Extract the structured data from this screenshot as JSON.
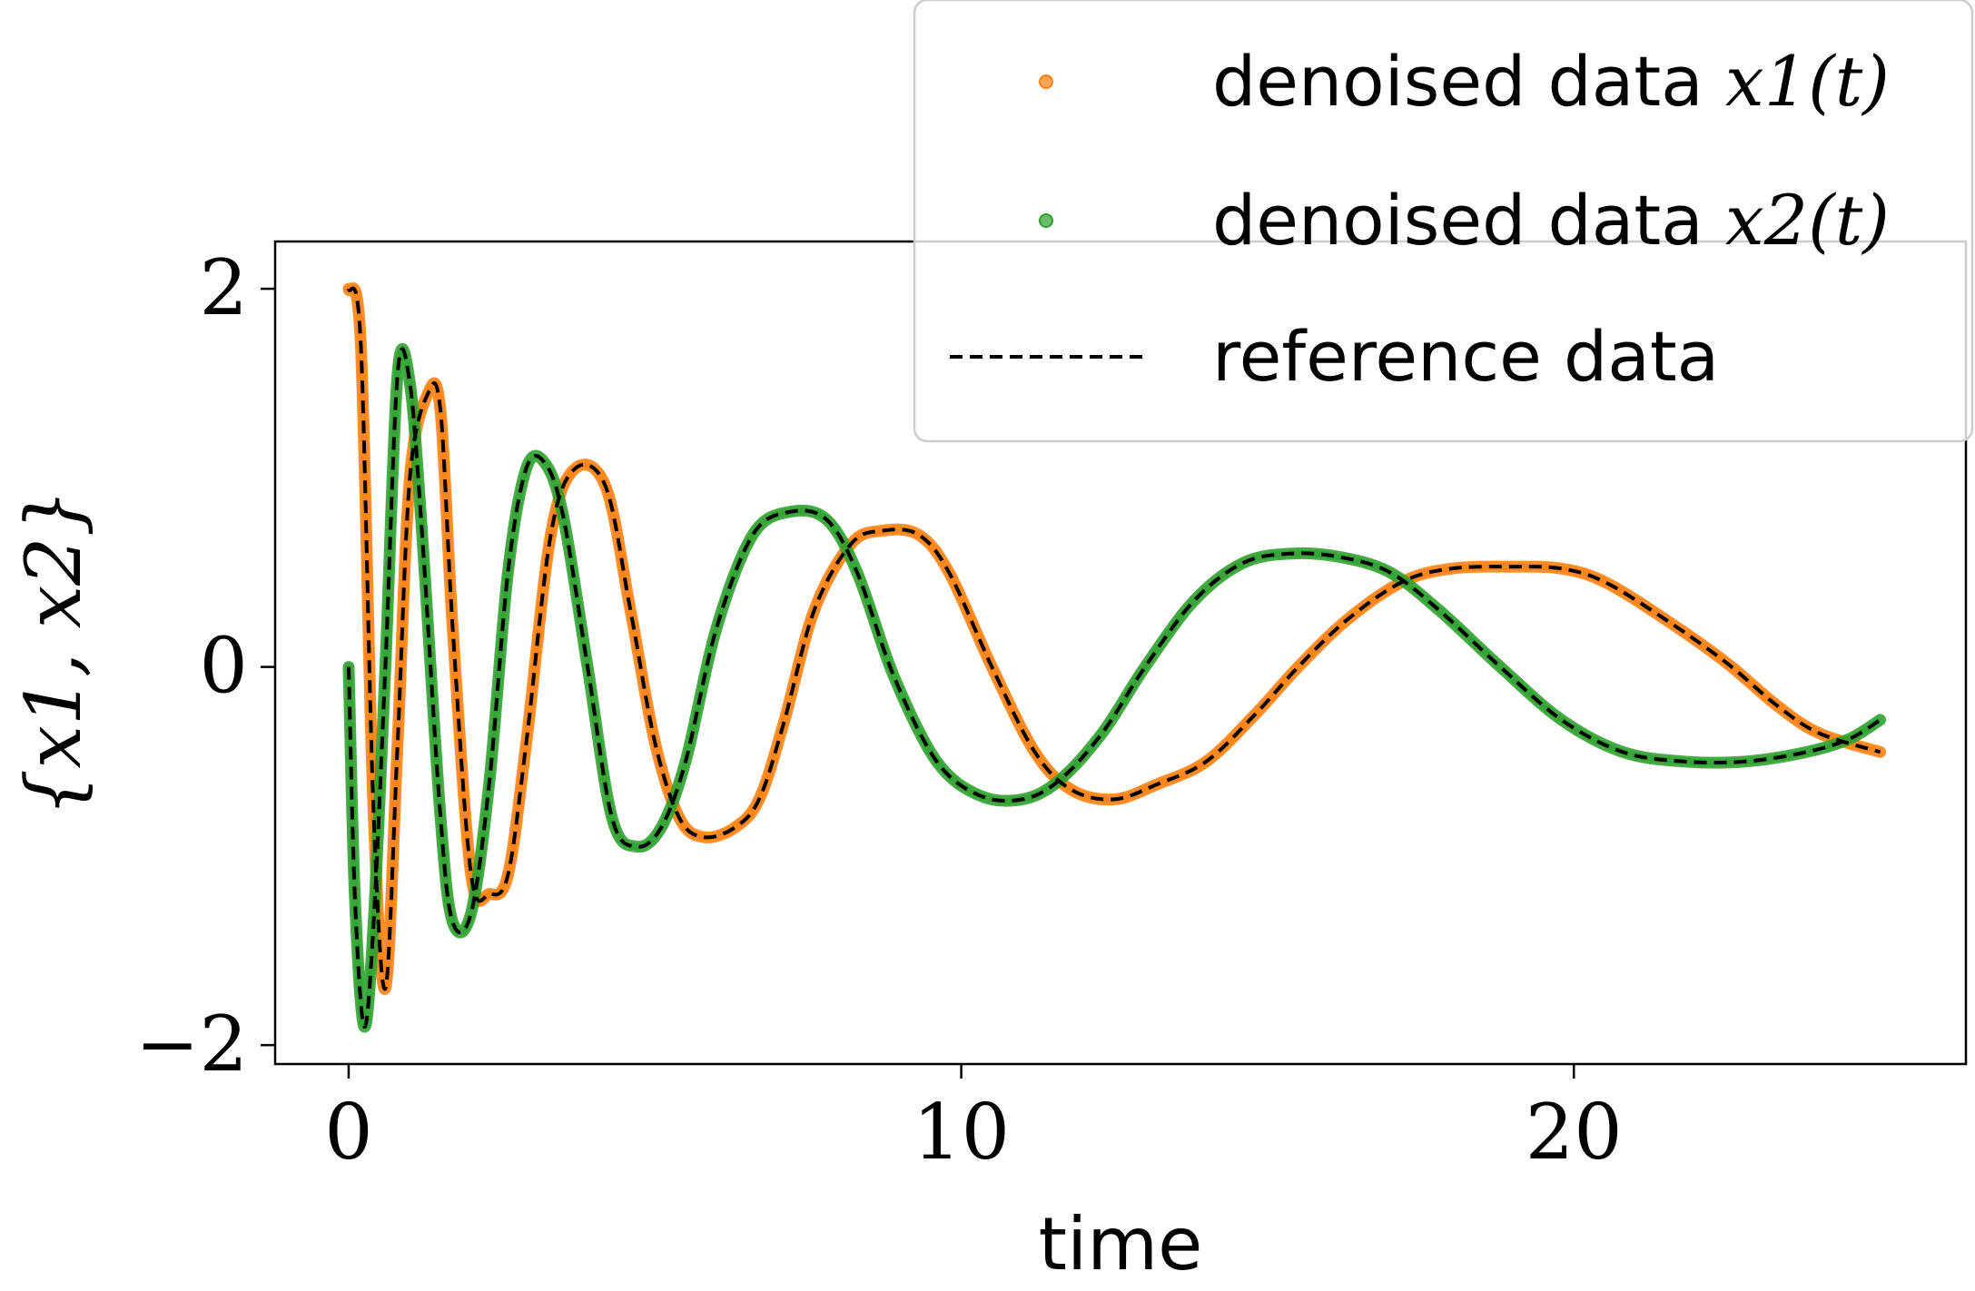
{
  "chart_data": {
    "type": "line",
    "xlabel": "time",
    "ylabel": "{x1, x2}",
    "xlim": [
      -1.2,
      26.4
    ],
    "ylim": [
      -2.1,
      2.25
    ],
    "xticks": [
      0,
      10,
      20
    ],
    "yticks": [
      -2,
      0,
      2
    ],
    "grid": false,
    "legend_position": "top-right",
    "colors": {
      "x1": "#ff7f0e",
      "x2": "#2ca02c",
      "reference": "#000000"
    },
    "legend": [
      {
        "text": "denoised data ",
        "math": "x1(t)",
        "style": "markers",
        "color": "#ff7f0e"
      },
      {
        "text": "denoised data ",
        "math": "x2(t)",
        "style": "markers",
        "color": "#2ca02c"
      },
      {
        "text": "reference data",
        "math": "",
        "style": "dashed",
        "color": "#000000"
      }
    ],
    "series": [
      {
        "name": "denoised data x1(t)",
        "points": [
          [
            0,
            2.0
          ],
          [
            0.2,
            1.7
          ],
          [
            0.4,
            -0.7
          ],
          [
            0.6,
            -1.7
          ],
          [
            0.8,
            -0.4
          ],
          [
            1.0,
            1.0
          ],
          [
            1.3,
            1.45
          ],
          [
            1.5,
            1.35
          ],
          [
            1.7,
            0.2
          ],
          [
            2.0,
            -1.1
          ],
          [
            2.3,
            -1.2
          ],
          [
            2.6,
            -1.1
          ],
          [
            2.9,
            -0.4
          ],
          [
            3.3,
            0.7
          ],
          [
            3.7,
            1.05
          ],
          [
            4.2,
            0.95
          ],
          [
            4.6,
            0.3
          ],
          [
            5.0,
            -0.4
          ],
          [
            5.4,
            -0.8
          ],
          [
            5.8,
            -0.9
          ],
          [
            6.3,
            -0.85
          ],
          [
            6.7,
            -0.7
          ],
          [
            7.1,
            -0.3
          ],
          [
            7.6,
            0.3
          ],
          [
            8.2,
            0.65
          ],
          [
            8.7,
            0.72
          ],
          [
            9.3,
            0.7
          ],
          [
            9.8,
            0.5
          ],
          [
            10.5,
            0.0
          ],
          [
            11.2,
            -0.45
          ],
          [
            11.8,
            -0.65
          ],
          [
            12.5,
            -0.7
          ],
          [
            13.2,
            -0.62
          ],
          [
            14.0,
            -0.5
          ],
          [
            14.8,
            -0.25
          ],
          [
            15.5,
            0.0
          ],
          [
            16.3,
            0.25
          ],
          [
            17.2,
            0.45
          ],
          [
            18.0,
            0.52
          ],
          [
            19.0,
            0.53
          ],
          [
            19.8,
            0.52
          ],
          [
            20.5,
            0.45
          ],
          [
            21.5,
            0.25
          ],
          [
            22.5,
            0.02
          ],
          [
            23.3,
            -0.2
          ],
          [
            24.0,
            -0.35
          ],
          [
            25.0,
            -0.45
          ]
        ]
      },
      {
        "name": "denoised data x2(t)",
        "points": [
          [
            0,
            0.0
          ],
          [
            0.1,
            -1.2
          ],
          [
            0.25,
            -1.9
          ],
          [
            0.4,
            -1.4
          ],
          [
            0.6,
            0.0
          ],
          [
            0.8,
            1.55
          ],
          [
            1.0,
            1.5
          ],
          [
            1.2,
            0.7
          ],
          [
            1.5,
            -0.8
          ],
          [
            1.7,
            -1.35
          ],
          [
            2.0,
            -1.3
          ],
          [
            2.3,
            -0.6
          ],
          [
            2.6,
            0.5
          ],
          [
            2.9,
            1.05
          ],
          [
            3.2,
            1.08
          ],
          [
            3.5,
            0.8
          ],
          [
            3.9,
            0.0
          ],
          [
            4.3,
            -0.8
          ],
          [
            4.7,
            -0.95
          ],
          [
            5.1,
            -0.85
          ],
          [
            5.5,
            -0.5
          ],
          [
            6.0,
            0.2
          ],
          [
            6.6,
            0.7
          ],
          [
            7.2,
            0.82
          ],
          [
            7.8,
            0.78
          ],
          [
            8.3,
            0.5
          ],
          [
            8.9,
            -0.05
          ],
          [
            9.6,
            -0.5
          ],
          [
            10.3,
            -0.68
          ],
          [
            11.0,
            -0.7
          ],
          [
            11.6,
            -0.6
          ],
          [
            12.3,
            -0.35
          ],
          [
            13.0,
            0.0
          ],
          [
            13.8,
            0.35
          ],
          [
            14.6,
            0.55
          ],
          [
            15.4,
            0.6
          ],
          [
            16.2,
            0.58
          ],
          [
            17.0,
            0.5
          ],
          [
            17.8,
            0.3
          ],
          [
            18.8,
            0.0
          ],
          [
            19.8,
            -0.28
          ],
          [
            20.8,
            -0.45
          ],
          [
            21.8,
            -0.5
          ],
          [
            22.8,
            -0.5
          ],
          [
            23.8,
            -0.45
          ],
          [
            24.5,
            -0.38
          ],
          [
            25.0,
            -0.28
          ]
        ]
      }
    ]
  }
}
